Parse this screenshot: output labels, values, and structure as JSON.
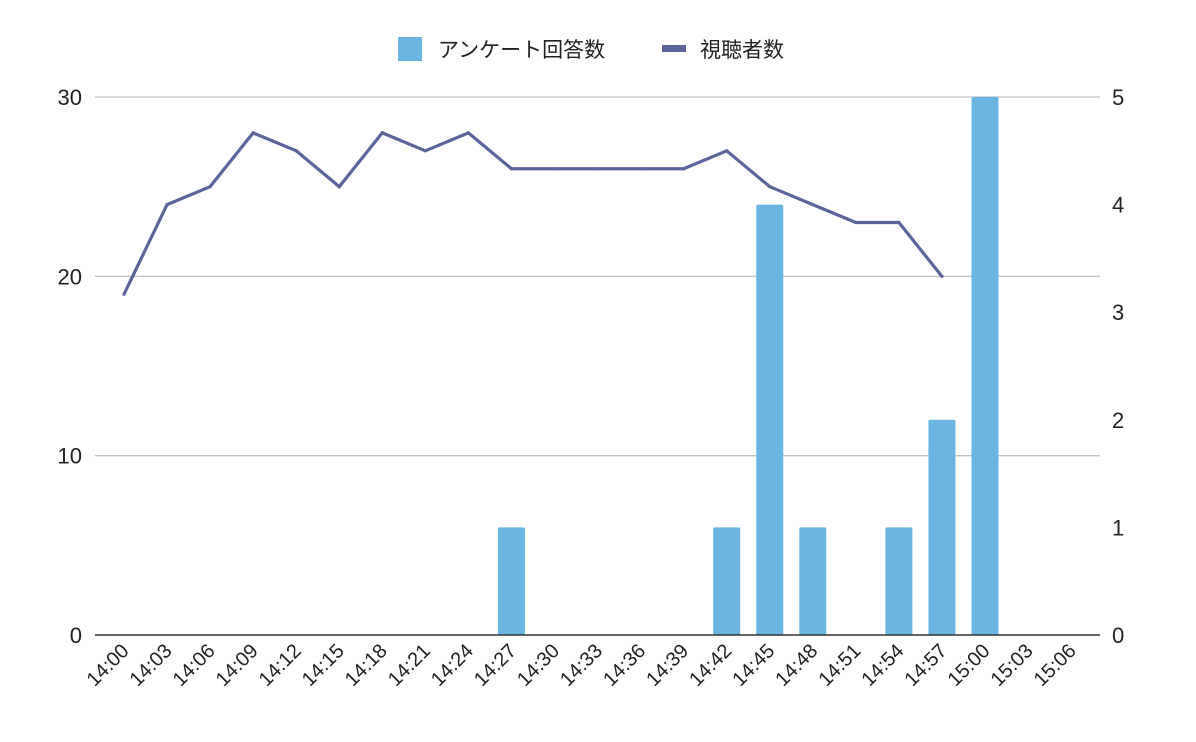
{
  "chart_data": {
    "type": "bar+line",
    "x": [
      "14:00",
      "14:03",
      "14:06",
      "14:09",
      "14:12",
      "14:15",
      "14:18",
      "14:21",
      "14:24",
      "14:27",
      "14:30",
      "14:33",
      "14:36",
      "14:39",
      "14:42",
      "14:45",
      "14:48",
      "14:51",
      "14:54",
      "14:57",
      "15:00",
      "15:03",
      "15:06"
    ],
    "legend_position": "top",
    "grid": true,
    "colors": {
      "bars": "#6ab6e1",
      "line": "#5c649c",
      "grid": "#c4c4c4",
      "baseline": "#333333"
    },
    "series": [
      {
        "name": "アンケート回答数",
        "kind": "bar",
        "axis": "right",
        "points": [
          {
            "x": "14:27",
            "y": 1
          },
          {
            "x": "14:42",
            "y": 1
          },
          {
            "x": "14:45",
            "y": 4
          },
          {
            "x": "14:48",
            "y": 1
          },
          {
            "x": "14:54",
            "y": 1
          },
          {
            "x": "14:57",
            "y": 2
          },
          {
            "x": "15:00",
            "y": 5
          }
        ]
      },
      {
        "name": "視聴者数",
        "kind": "line",
        "axis": "left",
        "points": [
          {
            "x": "14:00",
            "y": 19
          },
          {
            "x": "14:03",
            "y": 24
          },
          {
            "x": "14:06",
            "y": 25
          },
          {
            "x": "14:09",
            "y": 28
          },
          {
            "x": "14:12",
            "y": 27
          },
          {
            "x": "14:15",
            "y": 25
          },
          {
            "x": "14:18",
            "y": 28
          },
          {
            "x": "14:21",
            "y": 27
          },
          {
            "x": "14:24",
            "y": 28
          },
          {
            "x": "14:27",
            "y": 26
          },
          {
            "x": "14:30",
            "y": 26
          },
          {
            "x": "14:33",
            "y": 26
          },
          {
            "x": "14:36",
            "y": 26
          },
          {
            "x": "14:39",
            "y": 26
          },
          {
            "x": "14:42",
            "y": 27
          },
          {
            "x": "14:45",
            "y": 25
          },
          {
            "x": "14:48",
            "y": 24
          },
          {
            "x": "14:51",
            "y": 23
          },
          {
            "x": "14:54",
            "y": 23
          },
          {
            "x": "14:57",
            "y": 20
          }
        ]
      }
    ],
    "y_left": {
      "ylim": [
        0,
        30
      ],
      "ticks": [
        0,
        10,
        20,
        30
      ]
    },
    "y_right": {
      "ylim": [
        0,
        5
      ],
      "ticks": [
        0,
        1,
        2,
        3,
        4,
        5
      ]
    }
  }
}
